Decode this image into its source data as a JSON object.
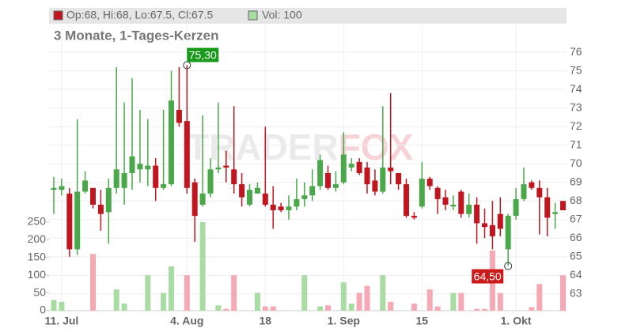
{
  "chart_data": {
    "type": "candlestick",
    "legend": [
      "Op:68, Hi:68, Lo:67.5, Cl:67.5",
      "Vol: 100"
    ],
    "subtitle": "3 Monate, 1-Tages-Kerzen",
    "watermark": [
      "TRADER",
      "FOX"
    ],
    "categories": [
      null,
      "11. Jul",
      null,
      null,
      null,
      null,
      null,
      null,
      null,
      null,
      null,
      null,
      null,
      null,
      null,
      null,
      null,
      "4. Aug",
      null,
      null,
      null,
      null,
      null,
      null,
      null,
      null,
      null,
      "18",
      null,
      null,
      null,
      null,
      null,
      null,
      null,
      null,
      null,
      "1. Sep",
      null,
      null,
      null,
      null,
      null,
      null,
      null,
      null,
      null,
      "15",
      null,
      null,
      null,
      null,
      null,
      null,
      null,
      null,
      null,
      null,
      null,
      "1. Okt",
      null,
      null,
      null,
      null,
      null,
      null
    ],
    "open": [
      68.6,
      68.6,
      68.4,
      65.4,
      68.5,
      68.7,
      67.8,
      67.4,
      68.7,
      68.7,
      69.5,
      69.7,
      69.7,
      69.9,
      68.7,
      68.9,
      72.9,
      72.3,
      69.0,
      67.8,
      68.4,
      69.7,
      69.9,
      69.7,
      68.9,
      67.8,
      68.4,
      68.4,
      67.8,
      67.7,
      67.5,
      67.7,
      68.1,
      68.3,
      68.8,
      69.5,
      68.7,
      69.0,
      69.8,
      70.1,
      69.8,
      69.1,
      68.5,
      69.8,
      69.5,
      68.9,
      67.2,
      67.7,
      69.2,
      68.7,
      68.2,
      67.7,
      68.5,
      67.3,
      67.8,
      66.8,
      66.7,
      67.3,
      65.4,
      67.2,
      68.1,
      69.0,
      68.7,
      68.2,
      67.3,
      68
    ],
    "high": [
      69.3,
      69.2,
      68.7,
      72.4,
      69.6,
      68.7,
      68.6,
      69.2,
      75.2,
      73.3,
      74.6,
      72.9,
      72.4,
      70.3,
      72.9,
      75.0,
      75.2,
      75.3,
      69.2,
      72.6,
      70.3,
      73.3,
      70.7,
      73.1,
      69.5,
      68.9,
      69.0,
      72.0,
      68.8,
      67.9,
      68.3,
      69.2,
      69.0,
      69.7,
      70.5,
      69.9,
      69.6,
      71.7,
      70.3,
      70.3,
      70.1,
      69.7,
      73.1,
      73.8,
      69.5,
      69.2,
      67.4,
      70.1,
      69.3,
      68.8,
      68.6,
      68.3,
      68.6,
      68.4,
      68.2,
      67.6,
      68.0,
      68.2,
      67.3,
      68.7,
      69.8,
      69.1,
      69.1,
      68.7,
      67.9,
      68
    ],
    "low": [
      67.3,
      68.3,
      65.0,
      65.1,
      68.4,
      67.6,
      66.4,
      65.7,
      68.4,
      67.8,
      68.6,
      69.0,
      68.8,
      68.0,
      68.6,
      68.8,
      72.0,
      68.4,
      65.8,
      67.7,
      68.2,
      69.5,
      69.0,
      68.4,
      67.7,
      67.7,
      68.4,
      67.7,
      66.5,
      67.4,
      67.0,
      67.5,
      67.7,
      68.0,
      68.6,
      68.6,
      68.5,
      68.9,
      69.6,
      69.4,
      68.4,
      68.3,
      68.4,
      68.9,
      68.6,
      67.1,
      67.0,
      67.6,
      68.6,
      67.3,
      67.5,
      67.5,
      67.1,
      67.1,
      65.7,
      66.0,
      65.4,
      66.1,
      64.5,
      67.0,
      68.0,
      68.6,
      66.2,
      66.1,
      66.5,
      67.5
    ],
    "close": [
      68.7,
      68.8,
      65.4,
      68.5,
      69.1,
      67.8,
      67.3,
      68.7,
      69.7,
      69.5,
      70.4,
      70.0,
      69.9,
      68.7,
      68.9,
      73.4,
      72.2,
      68.7,
      67.2,
      68.4,
      69.7,
      69.8,
      69.8,
      68.9,
      68.2,
      68.6,
      68.7,
      67.8,
      67.5,
      67.5,
      67.7,
      68.1,
      68.3,
      68.8,
      70.2,
      68.7,
      68.9,
      70.5,
      70.0,
      69.5,
      68.9,
      68.5,
      69.8,
      69.6,
      68.9,
      67.2,
      67.1,
      69.2,
      68.8,
      68.1,
      67.8,
      67.8,
      67.3,
      67.8,
      66.8,
      66.6,
      66.1,
      66.5,
      67.2,
      68.1,
      68.9,
      68.7,
      68.2,
      67.1,
      67.4,
      67.5
    ],
    "volume": [
      30,
      25,
      0,
      0,
      0,
      160,
      0,
      0,
      60,
      20,
      0,
      0,
      100,
      0,
      50,
      125,
      0,
      100,
      0,
      250,
      0,
      15,
      5,
      100,
      0,
      0,
      50,
      12,
      12,
      0,
      0,
      0,
      100,
      0,
      12,
      15,
      0,
      80,
      20,
      50,
      70,
      0,
      100,
      25,
      0,
      0,
      20,
      0,
      60,
      12,
      0,
      50,
      50,
      0,
      5,
      5,
      170,
      50,
      0,
      0,
      0,
      10,
      75,
      0,
      0,
      100
    ],
    "up_color": "#4aa84a",
    "down_color": "#c0161f",
    "up_volume_color": "#a9dca2",
    "down_volume_color": "#f4a9b5",
    "ylim": [
      62.1,
      78.3
    ],
    "yticks": [
      63,
      64,
      65,
      66,
      67,
      68,
      69,
      70,
      71,
      72,
      73,
      74,
      75,
      76
    ],
    "y2lim": [
      0,
      850
    ],
    "y2ticks": [
      0,
      50,
      100,
      150,
      200,
      250
    ],
    "annotations": [
      {
        "label": "75,30",
        "value": 75.3,
        "index": 17,
        "color": "#1a9a1a"
      },
      {
        "label": "64,50",
        "value": 64.5,
        "index": 58,
        "color": "#cc1a1a"
      }
    ],
    "grid": true
  }
}
